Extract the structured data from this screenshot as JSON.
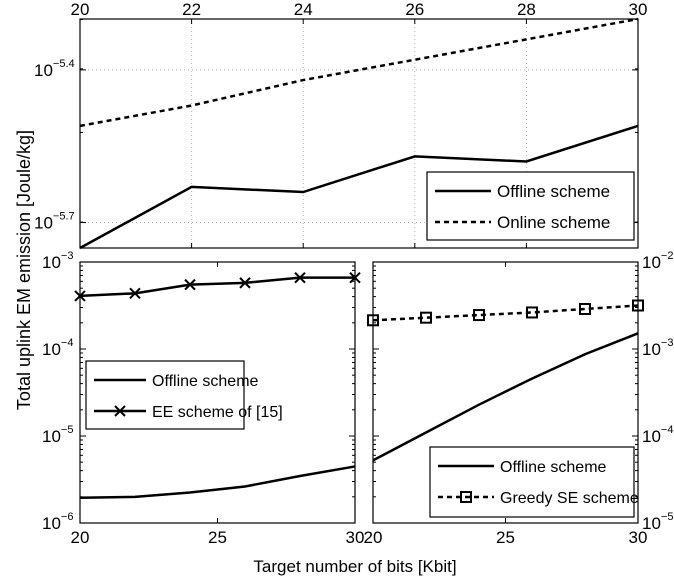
{
  "figure": {
    "ylabel": "Total uplink EM emission [Joule/kg]",
    "xlabel": "Target number of bits [Kbit]"
  },
  "chart_data": [
    {
      "type": "line",
      "x_axis_position": "top",
      "xlim": [
        20,
        30
      ],
      "x_ticks": [
        20,
        22,
        24,
        26,
        28,
        30
      ],
      "yscale": "log",
      "ylim_exponent": [
        -5.75,
        -5.3
      ],
      "y_ticks": [
        {
          "exp": -5.7,
          "base": "10",
          "sup": "−5.7"
        },
        {
          "exp": -5.4,
          "base": "10",
          "sup": "−5.4"
        }
      ],
      "grid": true,
      "legend_position": "bottom-right",
      "x": [
        20,
        22,
        24,
        26,
        28,
        30
      ],
      "series": [
        {
          "name": "Offline scheme",
          "style": "solid",
          "marker": "none",
          "y_exp": [
            -5.75,
            -5.63,
            -5.64,
            -5.57,
            -5.58,
            -5.51
          ]
        },
        {
          "name": "Online scheme",
          "style": "dashed",
          "marker": "none",
          "y_exp": [
            -5.51,
            -5.47,
            -5.42,
            -5.38,
            -5.34,
            -5.3
          ]
        }
      ]
    },
    {
      "type": "line",
      "x_axis_position": "bottom",
      "xlim": [
        20,
        30
      ],
      "x_ticks": [
        20,
        25,
        30
      ],
      "yscale": "log",
      "ylim_exponent": [
        -6,
        -3
      ],
      "y_ticks": [
        {
          "exp": -6,
          "base": "10",
          "sup": "−6"
        },
        {
          "exp": -5,
          "base": "10",
          "sup": "−5"
        },
        {
          "exp": -4,
          "base": "10",
          "sup": "−4"
        },
        {
          "exp": -3,
          "base": "10",
          "sup": "−3"
        }
      ],
      "grid": false,
      "legend_position": "center-left",
      "x": [
        20,
        22,
        24,
        26,
        28,
        30
      ],
      "series": [
        {
          "name": "Offline scheme",
          "style": "solid",
          "marker": "none",
          "y_exp": [
            -5.71,
            -5.7,
            -5.65,
            -5.58,
            -5.46,
            -5.35
          ]
        },
        {
          "name": "EE scheme of [15]",
          "style": "solid",
          "marker": "x",
          "y_exp": [
            -3.39,
            -3.36,
            -3.26,
            -3.24,
            -3.18,
            -3.18
          ]
        }
      ]
    },
    {
      "type": "line",
      "x_axis_position": "bottom",
      "xlim": [
        20,
        30
      ],
      "x_ticks": [
        20,
        25,
        30
      ],
      "yscale": "log",
      "yaxis_side": "right",
      "ylim_exponent": [
        -5,
        -2
      ],
      "y_ticks": [
        {
          "exp": -5,
          "base": "10",
          "sup": "−5"
        },
        {
          "exp": -4,
          "base": "10",
          "sup": "−4"
        },
        {
          "exp": -3,
          "base": "10",
          "sup": "−3"
        },
        {
          "exp": -2,
          "base": "10",
          "sup": "−2"
        }
      ],
      "grid": false,
      "legend_position": "bottom-right",
      "x": [
        20,
        22,
        24,
        26,
        28,
        30
      ],
      "series": [
        {
          "name": "Offline scheme",
          "style": "solid",
          "marker": "none",
          "y_exp": [
            -4.28,
            -3.96,
            -3.64,
            -3.34,
            -3.06,
            -2.82
          ]
        },
        {
          "name": "Greedy SE scheme",
          "style": "dashed",
          "marker": "square",
          "y_exp": [
            -2.67,
            -2.64,
            -2.61,
            -2.58,
            -2.54,
            -2.5
          ]
        }
      ]
    }
  ]
}
